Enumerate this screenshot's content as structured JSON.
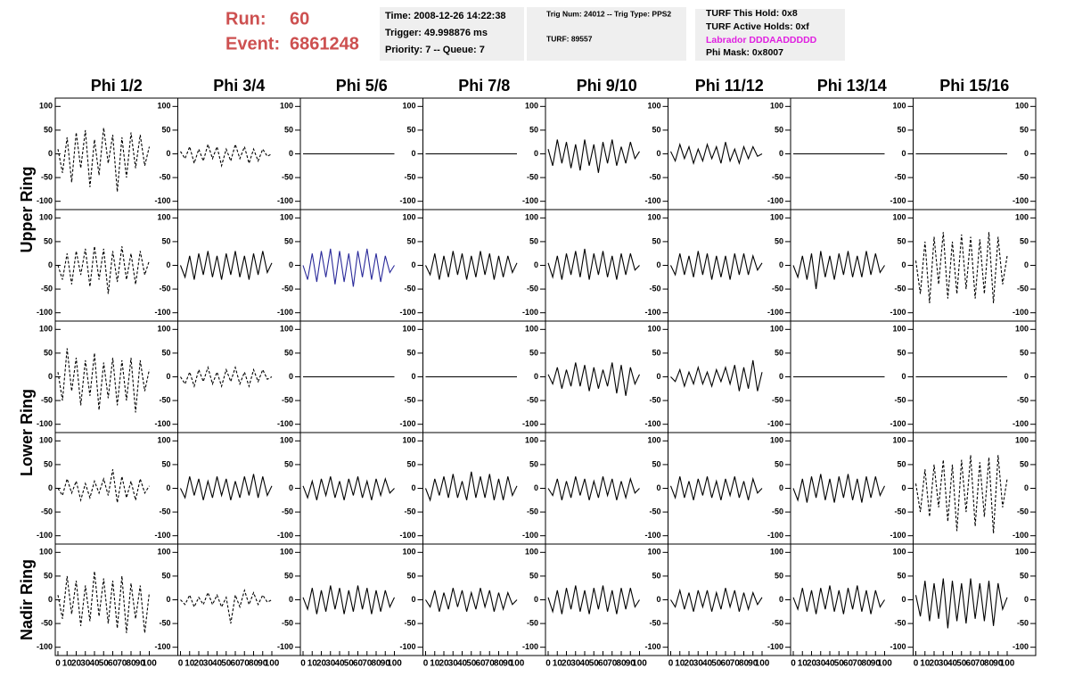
{
  "header": {
    "run_label": "Run:",
    "run": "60",
    "event_label": "Event:",
    "event": "6861248",
    "time": "Time: 2008-12-26 14:22:38",
    "trigger": "Trigger: 49.998876 ms",
    "priority": "Priority: 7 -- Queue: 7",
    "trig_num": "Trig Num: 24012 -- Trig Type: PPS2",
    "turf": "TURF: 89557",
    "turf_hold": "TURF This Hold: 0x8",
    "turf_active": "TURF Active Holds: 0xf",
    "labrador": "Labrador DDDAADDDDD",
    "phi_mask": "Phi Mask: 0x8007"
  },
  "chart_data": {
    "type": "line",
    "columns": [
      "Phi 1/2",
      "Phi 3/4",
      "Phi 5/6",
      "Phi 7/8",
      "Phi 9/10",
      "Phi 11/12",
      "Phi 13/14",
      "Phi 15/16"
    ],
    "ring_labels": [
      "Upper Ring",
      "Lower Ring",
      "Nadir Ring"
    ],
    "xlim": [
      0,
      100
    ],
    "xticks": [
      0,
      10,
      20,
      30,
      40,
      50,
      60,
      70,
      80,
      90,
      100
    ],
    "ylim": [
      -110,
      110
    ],
    "yticks": [
      -100,
      -50,
      0,
      50,
      100
    ],
    "x": [
      0,
      5,
      10,
      15,
      20,
      25,
      30,
      35,
      40,
      45,
      50,
      55,
      60,
      65,
      70,
      75,
      80,
      85,
      90,
      95,
      100
    ],
    "rows": [
      [
        {
          "color": "#000000",
          "dashed": true,
          "values": [
            10,
            -40,
            35,
            -60,
            45,
            -30,
            50,
            -70,
            30,
            -45,
            55,
            -20,
            40,
            -80,
            35,
            -50,
            45,
            -30,
            40,
            -25,
            15
          ]
        },
        {
          "color": "#000000",
          "dashed": true,
          "values": [
            5,
            -10,
            15,
            -20,
            10,
            -15,
            20,
            -10,
            15,
            -25,
            10,
            -15,
            20,
            -10,
            15,
            -20,
            10,
            -15,
            10,
            -5,
            0
          ]
        },
        {
          "color": "#000000",
          "dashed": false,
          "values": [
            0,
            0,
            0,
            0,
            0,
            0,
            0,
            0,
            0,
            0,
            0,
            0,
            0,
            0,
            0,
            0,
            0,
            0,
            0,
            0,
            0
          ]
        },
        {
          "color": "#000000",
          "dashed": false,
          "values": [
            0,
            0,
            0,
            0,
            0,
            0,
            0,
            0,
            0,
            0,
            0,
            0,
            0,
            0,
            0,
            0,
            0,
            0,
            0,
            0,
            0
          ]
        },
        {
          "color": "#000000",
          "dashed": false,
          "values": [
            10,
            -25,
            30,
            -20,
            25,
            -30,
            20,
            -35,
            30,
            -25,
            20,
            -40,
            25,
            -20,
            30,
            -25,
            15,
            -20,
            25,
            -10,
            5
          ]
        },
        {
          "color": "#000000",
          "dashed": false,
          "values": [
            5,
            -15,
            20,
            -10,
            15,
            -20,
            10,
            -15,
            20,
            -10,
            15,
            -20,
            25,
            -15,
            10,
            -20,
            15,
            -10,
            15,
            -5,
            0
          ]
        },
        {
          "color": "#000000",
          "dashed": false,
          "values": [
            0,
            0,
            0,
            0,
            0,
            0,
            0,
            0,
            0,
            0,
            0,
            0,
            0,
            0,
            0,
            0,
            0,
            0,
            0,
            0,
            0
          ]
        },
        {
          "color": "#000000",
          "dashed": false,
          "values": [
            0,
            0,
            0,
            0,
            0,
            0,
            0,
            0,
            0,
            0,
            0,
            0,
            0,
            0,
            0,
            0,
            0,
            0,
            0,
            0,
            0
          ]
        }
      ],
      [
        {
          "color": "#000000",
          "dashed": true,
          "values": [
            0,
            -30,
            25,
            -40,
            30,
            -20,
            35,
            -45,
            40,
            -30,
            35,
            -60,
            30,
            -35,
            40,
            -30,
            25,
            -40,
            30,
            -20,
            10
          ]
        },
        {
          "color": "#000000",
          "dashed": false,
          "values": [
            0,
            -25,
            20,
            -30,
            25,
            -20,
            30,
            -25,
            20,
            -30,
            25,
            -20,
            30,
            -25,
            20,
            -30,
            25,
            -20,
            30,
            -15,
            5
          ]
        },
        {
          "color": "#2a2a9a",
          "dashed": false,
          "values": [
            0,
            -30,
            25,
            -35,
            30,
            -25,
            35,
            -40,
            30,
            -35,
            25,
            -45,
            30,
            -25,
            35,
            -30,
            25,
            -35,
            20,
            -15,
            0
          ]
        },
        {
          "color": "#000000",
          "dashed": false,
          "values": [
            0,
            -20,
            25,
            -30,
            20,
            -25,
            30,
            -20,
            25,
            -30,
            20,
            -25,
            30,
            -20,
            25,
            -30,
            20,
            -25,
            20,
            -15,
            5
          ]
        },
        {
          "color": "#000000",
          "dashed": false,
          "values": [
            5,
            -25,
            20,
            -30,
            25,
            -20,
            30,
            -25,
            35,
            -30,
            25,
            -20,
            30,
            -25,
            20,
            -30,
            25,
            -20,
            25,
            -10,
            0
          ]
        },
        {
          "color": "#000000",
          "dashed": false,
          "values": [
            0,
            -20,
            25,
            -20,
            20,
            -25,
            30,
            -20,
            25,
            -30,
            20,
            -25,
            20,
            -30,
            25,
            -20,
            25,
            -20,
            20,
            -10,
            5
          ]
        },
        {
          "color": "#000000",
          "dashed": false,
          "values": [
            0,
            -25,
            20,
            -30,
            25,
            -50,
            30,
            -25,
            20,
            -30,
            25,
            -20,
            30,
            -25,
            20,
            -25,
            30,
            -20,
            25,
            -15,
            0
          ]
        },
        {
          "color": "#000000",
          "dashed": true,
          "values": [
            10,
            -60,
            50,
            -80,
            60,
            -40,
            70,
            -70,
            50,
            -60,
            65,
            -50,
            60,
            -70,
            55,
            -60,
            70,
            -80,
            60,
            -40,
            20
          ]
        }
      ],
      [
        {
          "color": "#000000",
          "dashed": true,
          "values": [
            10,
            -50,
            60,
            -30,
            40,
            -60,
            35,
            -40,
            50,
            -70,
            30,
            -45,
            40,
            -60,
            35,
            -50,
            40,
            -75,
            35,
            -30,
            15
          ]
        },
        {
          "color": "#000000",
          "dashed": true,
          "values": [
            0,
            -15,
            10,
            -20,
            15,
            -10,
            20,
            -15,
            10,
            -20,
            15,
            -10,
            20,
            -15,
            10,
            -20,
            15,
            -10,
            15,
            -5,
            0
          ]
        },
        {
          "color": "#000000",
          "dashed": false,
          "values": [
            0,
            0,
            0,
            0,
            0,
            0,
            0,
            0,
            0,
            0,
            0,
            0,
            0,
            0,
            0,
            0,
            0,
            0,
            0,
            0,
            0
          ]
        },
        {
          "color": "#000000",
          "dashed": false,
          "values": [
            0,
            0,
            0,
            0,
            0,
            0,
            0,
            0,
            0,
            0,
            0,
            0,
            0,
            0,
            0,
            0,
            0,
            0,
            0,
            0,
            0
          ]
        },
        {
          "color": "#000000",
          "dashed": false,
          "values": [
            5,
            -15,
            20,
            -25,
            15,
            -20,
            30,
            -20,
            25,
            -30,
            20,
            -25,
            15,
            -20,
            30,
            -35,
            25,
            -40,
            20,
            -15,
            5
          ]
        },
        {
          "color": "#000000",
          "dashed": false,
          "values": [
            0,
            -10,
            15,
            -20,
            10,
            -15,
            20,
            -15,
            10,
            -20,
            15,
            -10,
            20,
            -15,
            25,
            -30,
            20,
            -25,
            35,
            -30,
            10
          ]
        },
        {
          "color": "#000000",
          "dashed": false,
          "values": [
            0,
            0,
            0,
            0,
            0,
            0,
            0,
            0,
            0,
            0,
            0,
            0,
            0,
            0,
            0,
            0,
            0,
            0,
            0,
            0,
            0
          ]
        },
        {
          "color": "#000000",
          "dashed": false,
          "values": [
            0,
            0,
            0,
            0,
            0,
            0,
            0,
            0,
            0,
            0,
            0,
            0,
            0,
            0,
            0,
            0,
            0,
            0,
            0,
            0,
            0
          ]
        }
      ],
      [
        {
          "color": "#000000",
          "dashed": true,
          "values": [
            0,
            -15,
            20,
            -10,
            15,
            -25,
            10,
            -20,
            15,
            -10,
            20,
            -15,
            40,
            -30,
            25,
            -20,
            15,
            -25,
            20,
            -10,
            5
          ]
        },
        {
          "color": "#000000",
          "dashed": false,
          "values": [
            0,
            -20,
            25,
            -15,
            20,
            -25,
            15,
            -20,
            25,
            -15,
            20,
            -25,
            15,
            -20,
            25,
            -15,
            30,
            -20,
            25,
            -15,
            5
          ]
        },
        {
          "color": "#000000",
          "dashed": false,
          "values": [
            5,
            -20,
            15,
            -25,
            20,
            -15,
            25,
            -20,
            15,
            -25,
            20,
            -15,
            25,
            -20,
            15,
            -25,
            20,
            -15,
            20,
            -10,
            0
          ]
        },
        {
          "color": "#000000",
          "dashed": false,
          "values": [
            0,
            -25,
            20,
            -15,
            25,
            -20,
            30,
            -20,
            15,
            -25,
            35,
            -20,
            25,
            -20,
            30,
            -25,
            20,
            -25,
            25,
            -15,
            5
          ]
        },
        {
          "color": "#000000",
          "dashed": false,
          "values": [
            0,
            -15,
            20,
            -25,
            15,
            -20,
            25,
            -15,
            20,
            -25,
            15,
            -20,
            25,
            -15,
            20,
            -25,
            15,
            -20,
            20,
            -10,
            0
          ]
        },
        {
          "color": "#000000",
          "dashed": false,
          "values": [
            5,
            -20,
            25,
            -20,
            15,
            -25,
            20,
            -15,
            25,
            -20,
            15,
            -25,
            20,
            -15,
            25,
            -20,
            15,
            -25,
            20,
            -10,
            0
          ]
        },
        {
          "color": "#000000",
          "dashed": false,
          "values": [
            0,
            -25,
            20,
            -30,
            25,
            -20,
            30,
            -25,
            20,
            -30,
            25,
            -20,
            30,
            -25,
            20,
            -30,
            25,
            -20,
            25,
            -15,
            5
          ]
        },
        {
          "color": "#000000",
          "dashed": true,
          "values": [
            10,
            -50,
            40,
            -60,
            50,
            -40,
            60,
            -70,
            50,
            -90,
            60,
            -50,
            70,
            -80,
            55,
            -60,
            65,
            -95,
            70,
            -40,
            20
          ]
        }
      ],
      [
        {
          "color": "#000000",
          "dashed": true,
          "values": [
            10,
            -40,
            50,
            -30,
            40,
            -55,
            30,
            -45,
            60,
            -35,
            45,
            -50,
            40,
            -60,
            50,
            -70,
            35,
            -40,
            30,
            -70,
            15
          ]
        },
        {
          "color": "#000000",
          "dashed": true,
          "values": [
            0,
            -10,
            10,
            -15,
            5,
            -10,
            15,
            -10,
            10,
            -15,
            5,
            -50,
            10,
            -15,
            20,
            -10,
            15,
            -10,
            10,
            -5,
            0
          ]
        },
        {
          "color": "#000000",
          "dashed": false,
          "values": [
            5,
            -20,
            25,
            -30,
            20,
            -25,
            30,
            -20,
            25,
            -30,
            20,
            -25,
            30,
            -20,
            25,
            -30,
            20,
            -25,
            20,
            -15,
            5
          ]
        },
        {
          "color": "#000000",
          "dashed": false,
          "values": [
            0,
            -15,
            20,
            -25,
            15,
            -20,
            25,
            -15,
            20,
            -25,
            15,
            -20,
            25,
            -15,
            20,
            -25,
            15,
            -20,
            15,
            -10,
            0
          ]
        },
        {
          "color": "#000000",
          "dashed": false,
          "values": [
            5,
            -25,
            20,
            -30,
            25,
            -20,
            30,
            -25,
            20,
            -30,
            25,
            -20,
            30,
            -25,
            20,
            -30,
            25,
            -20,
            25,
            -15,
            0
          ]
        },
        {
          "color": "#000000",
          "dashed": false,
          "values": [
            0,
            -15,
            20,
            -20,
            15,
            -25,
            20,
            -15,
            20,
            -25,
            15,
            -20,
            25,
            -15,
            20,
            -25,
            15,
            -20,
            15,
            -10,
            5
          ]
        },
        {
          "color": "#000000",
          "dashed": false,
          "values": [
            5,
            -20,
            25,
            -25,
            20,
            -30,
            25,
            -20,
            30,
            -25,
            20,
            -30,
            25,
            -20,
            30,
            -25,
            20,
            -30,
            20,
            -15,
            0
          ]
        },
        {
          "color": "#000000",
          "dashed": false,
          "values": [
            10,
            -35,
            40,
            -45,
            35,
            -40,
            45,
            -60,
            40,
            -45,
            35,
            -50,
            45,
            -40,
            35,
            -45,
            40,
            -55,
            35,
            -20,
            5
          ]
        }
      ]
    ]
  }
}
